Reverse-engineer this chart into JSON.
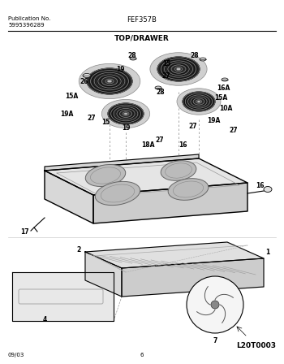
{
  "title_left1": "Publication No.",
  "title_left2": "5995396289",
  "title_center": "FEF357B",
  "section_label": "TOP/DRAWER",
  "footer_left": "09/03",
  "footer_center": "6",
  "footer_right": "L20T0003",
  "bg_color": "#ffffff",
  "line_color": "#000000",
  "text_color": "#000000",
  "gray_light": "#e8e8e8",
  "gray_mid": "#d0d0d0",
  "gray_dark": "#aaaaaa",
  "burner_face": "#444444",
  "burner_coil": "#222222",
  "reflector_face": "#cccccc"
}
